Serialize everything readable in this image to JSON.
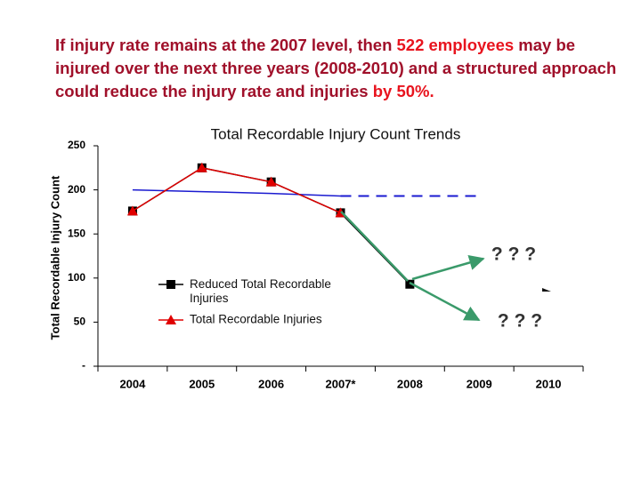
{
  "headline": [
    "If injury rate remains at the 2007 level, then ",
    "522 employees",
    " may be injured over the next three years (2008-2010) and a structured approach could reduce the injury rate and injuries ",
    "by 50%."
  ],
  "chart_data": {
    "type": "line",
    "title": "Total Recordable Injury Count Trends",
    "y_label": "Total Recordable Injury Count",
    "categories": [
      "2004",
      "2005",
      "2006",
      "2007*",
      "2008",
      "2009",
      "2010"
    ],
    "ylim": [
      0,
      250
    ],
    "yticks": [
      {
        "value": 0,
        "label": "-"
      },
      50,
      100,
      150,
      200,
      250
    ],
    "series": [
      {
        "name": "Reduced Total Recordable Injuries",
        "color": "#000000",
        "marker": "square",
        "values": [
          176,
          225,
          209,
          174,
          93,
          null,
          null
        ]
      },
      {
        "name": "Total Recordable Injuries",
        "color": "#e00000",
        "marker": "triangle",
        "values": [
          176,
          225,
          209,
          174,
          null,
          null,
          null
        ]
      }
    ],
    "trend": {
      "color": "#1a1ad0",
      "values": [
        200,
        198,
        196,
        193,
        null,
        null,
        null
      ]
    },
    "trend_projection": {
      "color": "#1a1ad0",
      "dashed": true,
      "values": [
        null,
        null,
        null,
        193,
        193,
        193,
        null
      ]
    },
    "annotations": [
      "? ? ?",
      "? ? ?"
    ]
  }
}
